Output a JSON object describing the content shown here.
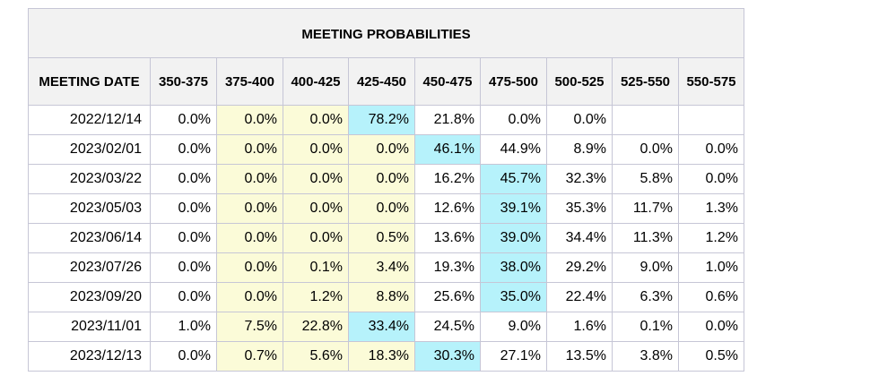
{
  "chart_data": {
    "type": "table",
    "title": "MEETING PROBABILITIES",
    "columns": [
      "MEETING DATE",
      "350-375",
      "375-400",
      "400-425",
      "425-450",
      "450-475",
      "475-500",
      "500-525",
      "525-550",
      "550-575"
    ],
    "rows": [
      {
        "date": "2022/12/14",
        "values": [
          "0.0%",
          "0.0%",
          "0.0%",
          "78.2%",
          "21.8%",
          "0.0%",
          "0.0%",
          "",
          ""
        ],
        "max_col": 3
      },
      {
        "date": "2023/02/01",
        "values": [
          "0.0%",
          "0.0%",
          "0.0%",
          "0.0%",
          "46.1%",
          "44.9%",
          "8.9%",
          "0.0%",
          "0.0%"
        ],
        "max_col": 4
      },
      {
        "date": "2023/03/22",
        "values": [
          "0.0%",
          "0.0%",
          "0.0%",
          "0.0%",
          "16.2%",
          "45.7%",
          "32.3%",
          "5.8%",
          "0.0%"
        ],
        "max_col": 5
      },
      {
        "date": "2023/05/03",
        "values": [
          "0.0%",
          "0.0%",
          "0.0%",
          "0.0%",
          "12.6%",
          "39.1%",
          "35.3%",
          "11.7%",
          "1.3%"
        ],
        "max_col": 5
      },
      {
        "date": "2023/06/14",
        "values": [
          "0.0%",
          "0.0%",
          "0.0%",
          "0.5%",
          "13.6%",
          "39.0%",
          "34.4%",
          "11.3%",
          "1.2%"
        ],
        "max_col": 5
      },
      {
        "date": "2023/07/26",
        "values": [
          "0.0%",
          "0.0%",
          "0.1%",
          "3.4%",
          "19.3%",
          "38.0%",
          "29.2%",
          "9.0%",
          "1.0%"
        ],
        "max_col": 5
      },
      {
        "date": "2023/09/20",
        "values": [
          "0.0%",
          "0.0%",
          "1.2%",
          "8.8%",
          "25.6%",
          "35.0%",
          "22.4%",
          "6.3%",
          "0.6%"
        ],
        "max_col": 5
      },
      {
        "date": "2023/11/01",
        "values": [
          "1.0%",
          "7.5%",
          "22.8%",
          "33.4%",
          "24.5%",
          "9.0%",
          "1.6%",
          "0.1%",
          "0.0%"
        ],
        "max_col": 3
      },
      {
        "date": "2023/12/13",
        "values": [
          "0.0%",
          "0.7%",
          "5.6%",
          "18.3%",
          "30.3%",
          "27.1%",
          "13.5%",
          "3.8%",
          "0.5%"
        ],
        "max_col": 4
      }
    ],
    "highlight_columns": [
      1,
      2,
      3
    ],
    "colors": {
      "header_bg": "#f2f2f2",
      "highlight_yellow": "#fbfbd8",
      "max_cyan": "#b6f2fb",
      "border": "#c6c6d6"
    }
  }
}
